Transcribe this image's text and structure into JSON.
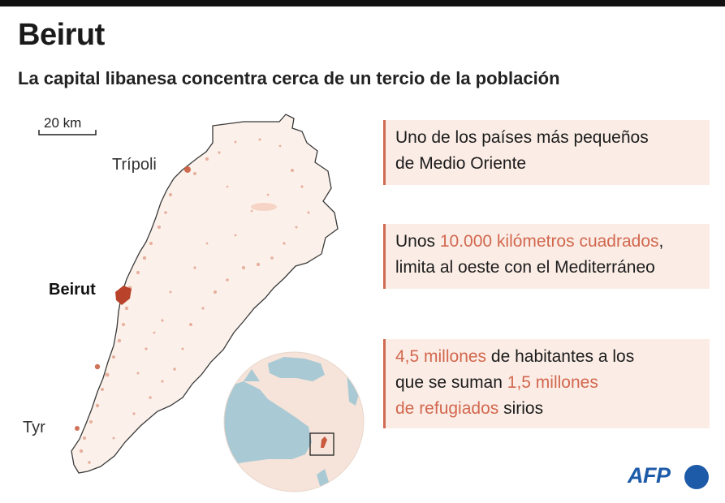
{
  "header": {
    "title": "Beirut",
    "subtitle": "La capital libanesa concentra cerca de un tercio de la población"
  },
  "map": {
    "scale_label": "20 km",
    "cities": {
      "tripoli": "Trípoli",
      "beirut": "Beirut",
      "tyr": "Tyr"
    },
    "colors": {
      "land": "#fbf1ea",
      "density": "#d77a5f",
      "density_dark": "#b8432a",
      "sea": "#a9c9d4",
      "inset_land": "#f6e4da"
    }
  },
  "facts": [
    {
      "line1": "Uno de los países más pequeños",
      "line2": "de Medio Oriente"
    },
    {
      "l1_pre": "Unos ",
      "l1_hl": "10.000 kilómetros cuadrados",
      "l1_post": ",",
      "line2": "limita al oeste con el Mediterráneo"
    },
    {
      "l1_hl": "4,5 millones",
      "l1_post": " de habitantes a los",
      "l2_pre": "que se suman ",
      "l2_hl": "1,5 millones",
      "l3_hl": "de refugiados",
      "l3_post": " sirios"
    }
  ],
  "logo": {
    "text": "AFP",
    "color": "#1d5aa8"
  }
}
